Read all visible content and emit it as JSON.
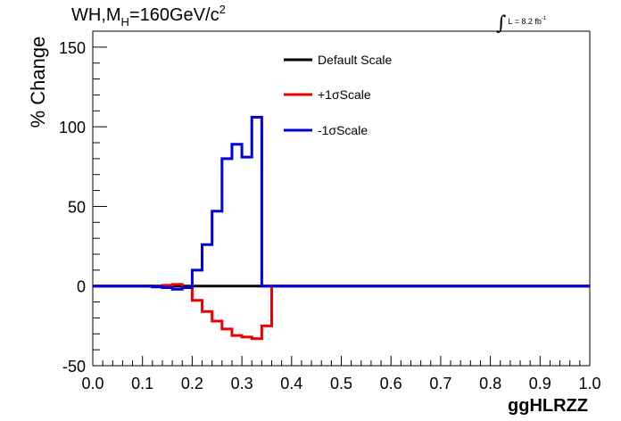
{
  "header": {
    "title_main": "WH,M",
    "title_sub": "H",
    "title_rest": "=160GeV/c",
    "title_sup": "2",
    "lumi_text": "L = 8.2 fb",
    "lumi_sup": "-1",
    "integral_symbol": "∫"
  },
  "chart_data": {
    "type": "line",
    "title": "WH,MH=160GeV/c2",
    "xlabel": "ggHLRZZ",
    "ylabel": "% Change",
    "xlim": [
      0.0,
      1.0
    ],
    "ylim": [
      -50,
      160
    ],
    "x_ticks": [
      "0.0",
      "0.1",
      "0.2",
      "0.3",
      "0.4",
      "0.5",
      "0.6",
      "0.7",
      "0.8",
      "0.9",
      "1.0"
    ],
    "y_ticks": [
      "-50",
      "0",
      "50",
      "100",
      "150"
    ],
    "grid": false,
    "legend_position": "top-center",
    "bin_edges": [
      0.0,
      0.02,
      0.04,
      0.06,
      0.08,
      0.1,
      0.12,
      0.14,
      0.16,
      0.18,
      0.2,
      0.22,
      0.24,
      0.26,
      0.28,
      0.3,
      0.32,
      0.34,
      0.36,
      0.38,
      0.4,
      0.42,
      0.44,
      0.46,
      0.48,
      0.5,
      0.52,
      0.54,
      0.56,
      0.58,
      0.6,
      0.62,
      0.64,
      0.66,
      0.68,
      0.7,
      0.72,
      0.74,
      0.76,
      0.78,
      0.8,
      0.82,
      0.84,
      0.86,
      0.88,
      0.9,
      0.92,
      0.94,
      0.96,
      0.98,
      1.0
    ],
    "series": [
      {
        "name": "Default Scale",
        "color": "#000000",
        "values": [
          0,
          0,
          0,
          0,
          0,
          0,
          0,
          0,
          0,
          0,
          0,
          0,
          0,
          0,
          0,
          0,
          0,
          0,
          0,
          0,
          0,
          0,
          0,
          0,
          0,
          0,
          0,
          0,
          0,
          0,
          0,
          0,
          0,
          0,
          0,
          0,
          0,
          0,
          0,
          0,
          0,
          0,
          0,
          0,
          0,
          0,
          0,
          0,
          0,
          0
        ]
      },
      {
        "name": "+1σScale",
        "color": "#ee0000",
        "values": [
          0,
          0,
          0,
          0,
          0,
          0,
          -0.5,
          0.5,
          1,
          -1,
          -9,
          -16,
          -22,
          -27,
          -31,
          -32,
          -33,
          -25,
          0,
          0,
          0,
          0,
          0,
          0,
          0,
          0,
          0,
          0,
          0,
          0,
          0,
          0,
          0,
          0,
          0,
          0,
          0,
          0,
          0,
          0,
          0,
          0,
          0,
          0,
          0,
          0,
          0,
          0,
          0,
          0
        ]
      },
      {
        "name": "-1σScale",
        "color": "#0000dd",
        "values": [
          0,
          0,
          0,
          0,
          0,
          0,
          -0.5,
          -1,
          -2,
          -1,
          10,
          26,
          47,
          80,
          89,
          81,
          106,
          0,
          0,
          0,
          0,
          0,
          0,
          0,
          0,
          0,
          0,
          0,
          0,
          0,
          0,
          0,
          0,
          0,
          0,
          0,
          0,
          0,
          0,
          0,
          0,
          0,
          0,
          0,
          0,
          0,
          0,
          0,
          0,
          0
        ]
      }
    ]
  }
}
